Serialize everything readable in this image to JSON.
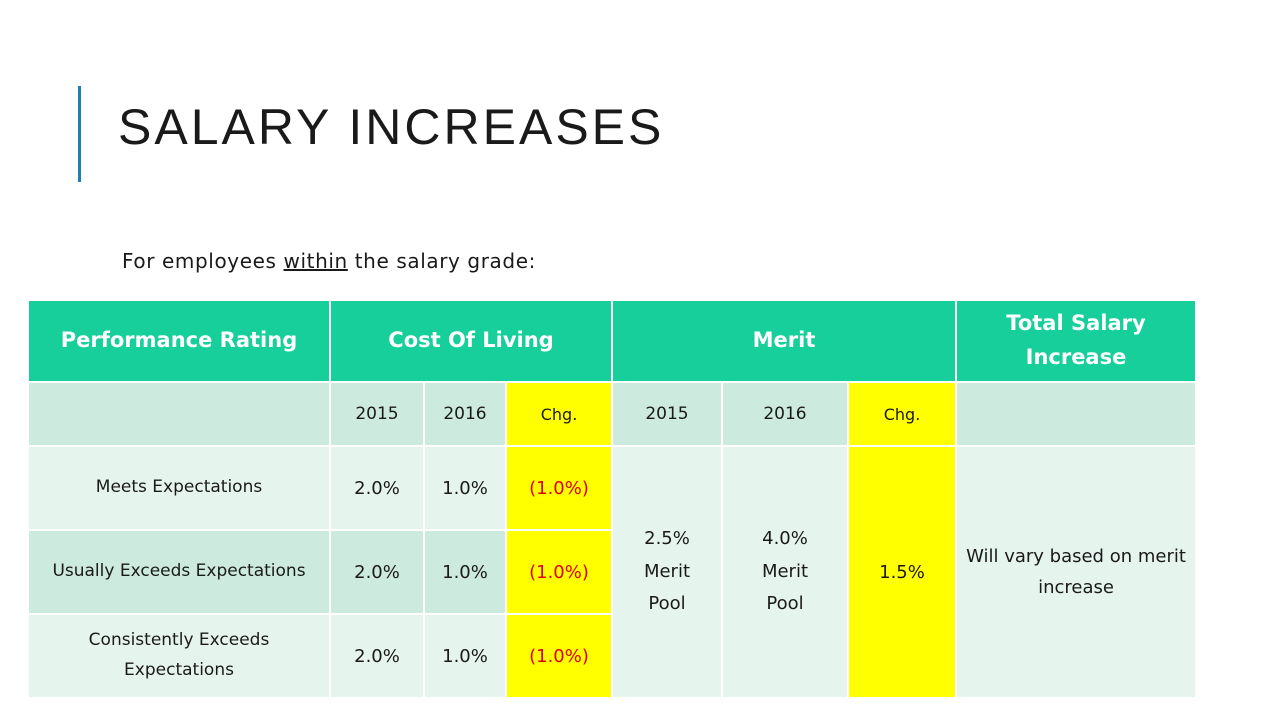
{
  "slide": {
    "title": "Salary Increases",
    "intro_before": "For employees ",
    "intro_emph": "within",
    "intro_after": " the salary grade:"
  },
  "table": {
    "headers": {
      "performance_rating": "Performance Rating",
      "cost_of_living": "Cost Of Living",
      "merit": "Merit",
      "total_salary_increase": "Total Salary Increase"
    },
    "subheaders": {
      "col_2015": "2015",
      "col_2016": "2016",
      "chg": "Chg.",
      "merit_2015": "2015",
      "merit_2016": "2016",
      "merit_chg": "Chg."
    },
    "rows": [
      {
        "rating": "Meets Expectations",
        "col_2015": "2.0%",
        "col_2016": "1.0%",
        "chg": "(1.0%)"
      },
      {
        "rating": "Usually Exceeds Expectations",
        "col_2015": "2.0%",
        "col_2016": "1.0%",
        "chg": "(1.0%)"
      },
      {
        "rating": "Consistently Exceeds Expectations",
        "col_2015": "2.0%",
        "col_2016": "1.0%",
        "chg": "(1.0%)"
      }
    ],
    "merit": {
      "pool_2015_value": "2.5%",
      "pool_2015_label": "Merit Pool",
      "pool_2016_value": "4.0%",
      "pool_2016_label": "Merit Pool",
      "chg": "1.5%"
    },
    "total_note": "Will vary based on merit increase"
  },
  "colors": {
    "header_green": "#16cf9b",
    "row_light": "#e6f4ee",
    "row_dark": "#cdeade",
    "highlight_yellow": "#ffff00",
    "negative_red": "#e00000",
    "title_accent": "#1f7fb0"
  }
}
